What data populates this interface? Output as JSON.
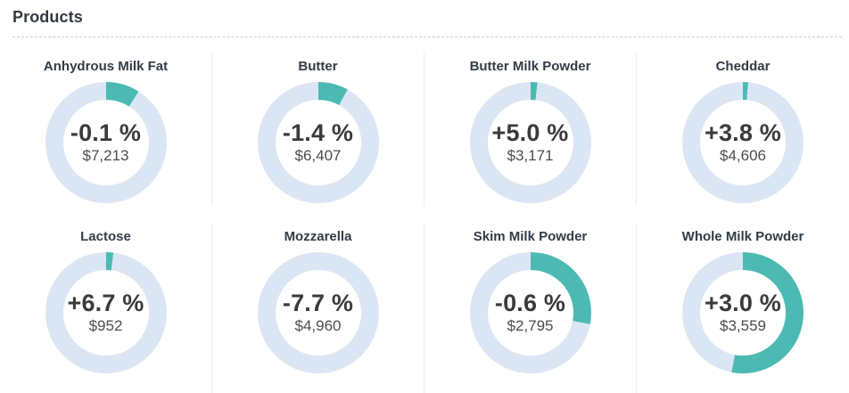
{
  "page": {
    "title": "Products"
  },
  "colors": {
    "accent_teal": "#4cbab2",
    "ring_blue": "#dbe6f4",
    "title_dark": "#323c46",
    "value_dark": "#3a3a3a",
    "price_gray": "#4d4d4d",
    "divider_dashed": "#cccccc",
    "cell_separator": "#ececec"
  },
  "chart_data": {
    "type": "pie",
    "subtype": "donut-gauge-grid",
    "title": "Products",
    "legend": "none",
    "grid_layout": {
      "rows": 2,
      "columns": 4
    },
    "note": "Each donut shows a teal arc starting at 12 o'clock (fraction of full ring) over a light blue ring; center shows percent change and price.",
    "products": [
      {
        "name": "Anhydrous Milk Fat",
        "change_pct": -0.1,
        "change_label": "-0.1 %",
        "price_usd": 7213,
        "price_label": "$7,213",
        "arc_fraction_pct": 9
      },
      {
        "name": "Butter",
        "change_pct": -1.4,
        "change_label": "-1.4 %",
        "price_usd": 6407,
        "price_label": "$6,407",
        "arc_fraction_pct": 8
      },
      {
        "name": "Butter Milk Powder",
        "change_pct": 5.0,
        "change_label": "+5.0 %",
        "price_usd": 3171,
        "price_label": "$3,171",
        "arc_fraction_pct": 1.8
      },
      {
        "name": "Cheddar",
        "change_pct": 3.8,
        "change_label": "+3.8 %",
        "price_usd": 4606,
        "price_label": "$4,606",
        "arc_fraction_pct": 1.4
      },
      {
        "name": "Lactose",
        "change_pct": 6.7,
        "change_label": "+6.7 %",
        "price_usd": 952,
        "price_label": "$952",
        "arc_fraction_pct": 1.9
      },
      {
        "name": "Mozzarella",
        "change_pct": -7.7,
        "change_label": "-7.7 %",
        "price_usd": 4960,
        "price_label": "$4,960",
        "arc_fraction_pct": 0
      },
      {
        "name": "Skim Milk Powder",
        "change_pct": -0.6,
        "change_label": "-0.6 %",
        "price_usd": 2795,
        "price_label": "$2,795",
        "arc_fraction_pct": 28
      },
      {
        "name": "Whole Milk Powder",
        "change_pct": 3.0,
        "change_label": "+3.0 %",
        "price_usd": 3559,
        "price_label": "$3,559",
        "arc_fraction_pct": 53
      }
    ]
  }
}
